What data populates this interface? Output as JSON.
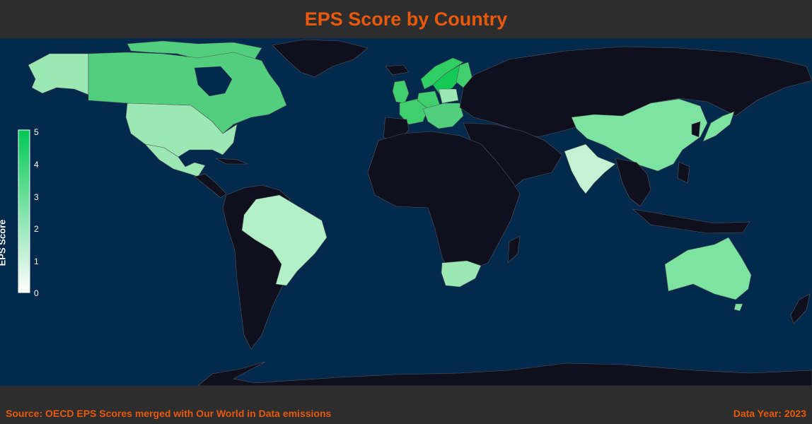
{
  "title": "EPS Score by Country",
  "footer": {
    "source": "Source: OECD EPS Scores merged with Our World in Data emissions",
    "year": "Data Year: 2023"
  },
  "legend": {
    "title": "EPS Score",
    "ticks": [
      "0",
      "1",
      "2",
      "3",
      "4",
      "5"
    ],
    "min": 0,
    "max": 5,
    "color_low": "#ffffff",
    "color_high": "#00c853"
  },
  "colors": {
    "ocean": "#032a4d",
    "no_data": "#0f0f1e",
    "background": "#2d2d2d",
    "accent": "#e8590c"
  },
  "countries_with_data": [
    "Canada",
    "United States",
    "Mexico",
    "Brazil",
    "United Kingdom",
    "France",
    "Germany",
    "Poland",
    "Sweden",
    "Norway",
    "Finland",
    "China",
    "India",
    "Japan",
    "South Africa",
    "Australia",
    "Alaska (US)"
  ]
}
